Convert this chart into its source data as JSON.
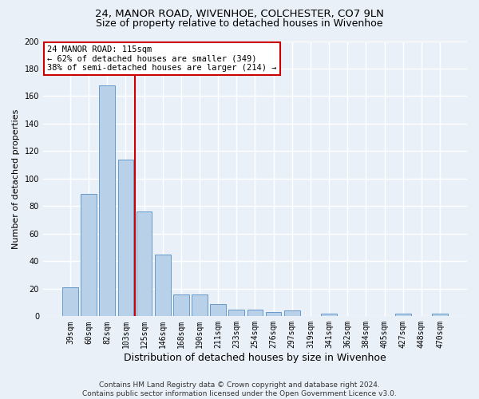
{
  "title1": "24, MANOR ROAD, WIVENHOE, COLCHESTER, CO7 9LN",
  "title2": "Size of property relative to detached houses in Wivenhoe",
  "xlabel": "Distribution of detached houses by size in Wivenhoe",
  "ylabel": "Number of detached properties",
  "bar_color": "#b8d0e8",
  "bar_edge_color": "#6699cc",
  "categories": [
    "39sqm",
    "60sqm",
    "82sqm",
    "103sqm",
    "125sqm",
    "146sqm",
    "168sqm",
    "190sqm",
    "211sqm",
    "233sqm",
    "254sqm",
    "276sqm",
    "297sqm",
    "319sqm",
    "341sqm",
    "362sqm",
    "384sqm",
    "405sqm",
    "427sqm",
    "448sqm",
    "470sqm"
  ],
  "values": [
    21,
    89,
    168,
    114,
    76,
    45,
    16,
    16,
    9,
    5,
    5,
    3,
    4,
    0,
    2,
    0,
    0,
    0,
    2,
    0,
    2
  ],
  "vline_x": 3.5,
  "vline_color": "#cc0000",
  "annotation_line1": "24 MANOR ROAD: 115sqm",
  "annotation_line2": "← 62% of detached houses are smaller (349)",
  "annotation_line3": "38% of semi-detached houses are larger (214) →",
  "annotation_box_color": "#ffffff",
  "annotation_box_edge": "#cc0000",
  "ylim": [
    0,
    200
  ],
  "yticks": [
    0,
    20,
    40,
    60,
    80,
    100,
    120,
    140,
    160,
    180,
    200
  ],
  "footnote": "Contains HM Land Registry data © Crown copyright and database right 2024.\nContains public sector information licensed under the Open Government Licence v3.0.",
  "background_color": "#eaf0f8",
  "plot_bg_color": "#eaf0f8",
  "grid_color": "#ffffff",
  "title1_fontsize": 9.5,
  "title2_fontsize": 9,
  "xlabel_fontsize": 9,
  "ylabel_fontsize": 8,
  "tick_fontsize": 7,
  "annotation_fontsize": 7.5,
  "footnote_fontsize": 6.5
}
